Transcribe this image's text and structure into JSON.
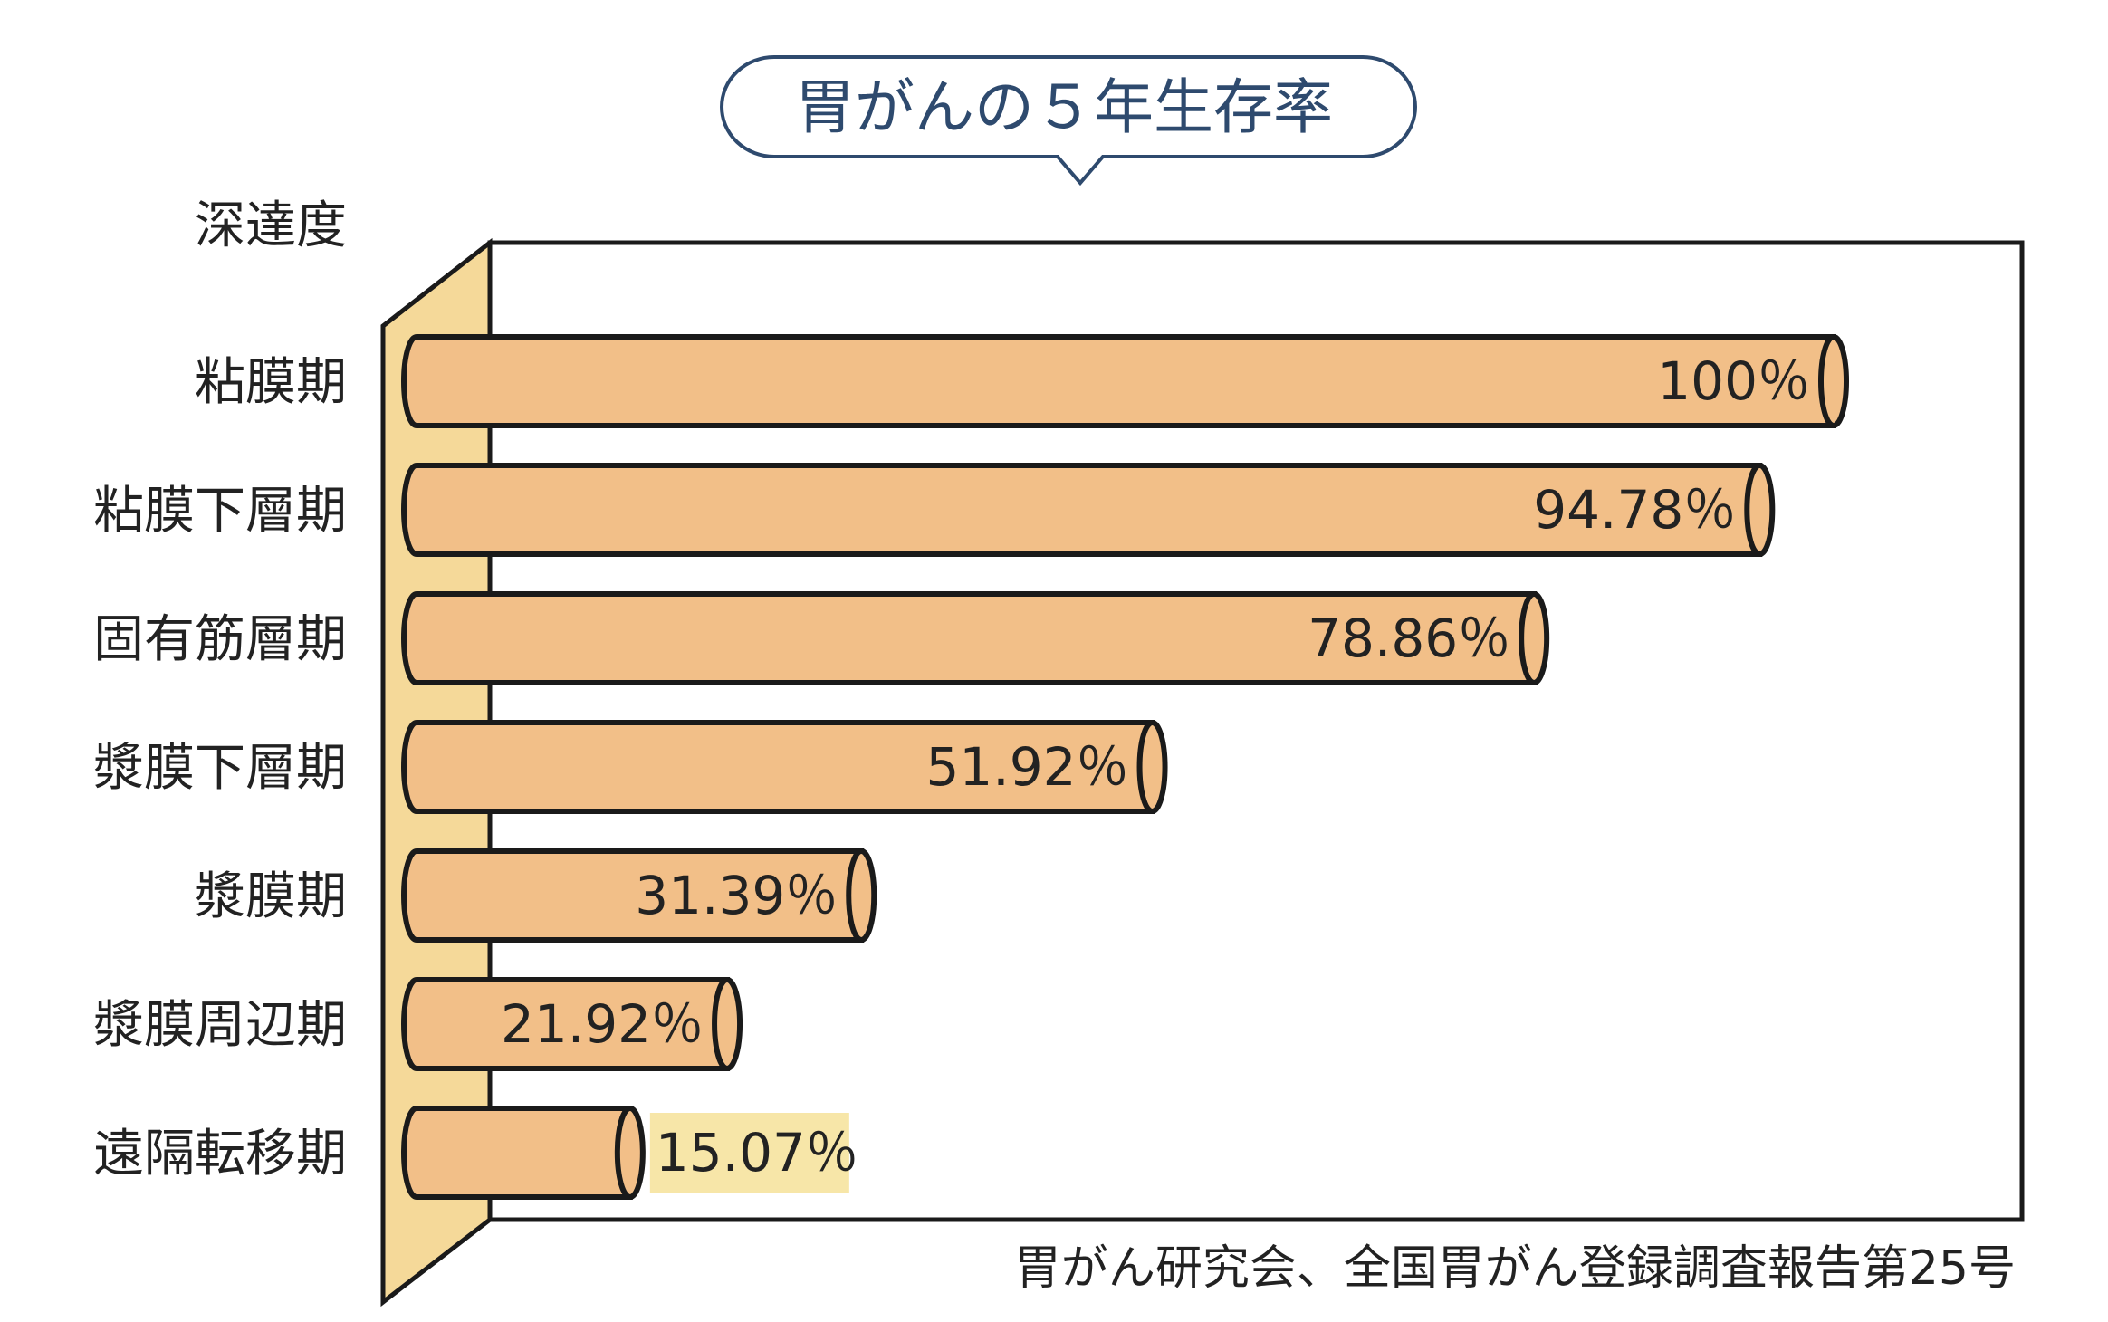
{
  "chart_data": {
    "type": "bar",
    "orientation": "horizontal",
    "title": "胃がんの５年生存率",
    "ylabel": "深達度",
    "xlabel": "",
    "unit": "%",
    "xlim": [
      0,
      100
    ],
    "grid": false,
    "categories": [
      "粘膜期",
      "粘膜下層期",
      "固有筋層期",
      "漿膜下層期",
      "漿膜期",
      "漿膜周辺期",
      "遠隔転移期"
    ],
    "values": [
      100,
      94.78,
      78.86,
      51.92,
      31.39,
      21.92,
      15.07
    ],
    "value_labels": [
      "100％",
      "94.78％",
      "78.86％",
      "51.92％",
      "31.39％",
      "21.92％",
      "15.07％"
    ],
    "source": "胃がん研究会、全国胃がん登録調査報告第25号"
  },
  "colors": {
    "bar_fill": "#f2bf88",
    "bar_stroke": "#1a1a1a",
    "wall_fill": "#f5d999",
    "title_stroke": "#2e4a6e",
    "title_text": "#2e4a6e",
    "highlight": "#f7e6a8"
  }
}
